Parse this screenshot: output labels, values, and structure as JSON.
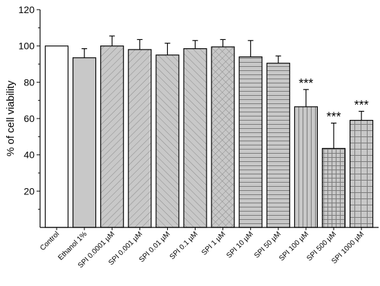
{
  "chart_data": {
    "type": "bar",
    "title": "",
    "xlabel": "",
    "ylabel": "% of cell viability",
    "ylim": [
      0,
      120
    ],
    "yticks": [
      20,
      40,
      60,
      80,
      100,
      120
    ],
    "grid": false,
    "legend": "none",
    "categories": [
      "Control",
      "Ethanol 1%",
      "SPI 0.0001 µM",
      "SPI 0.001 µM",
      "SPI 0.01 µM",
      "SPI 0.1 µM",
      "SPI 1 µM",
      "SPI 10 µM",
      "SPI 50 µM",
      "SPI 100 µM",
      "SPI 500 µM",
      "SPI 1000 µM"
    ],
    "values": [
      100,
      93.5,
      100,
      98,
      95,
      98.5,
      99.5,
      94,
      90.5,
      66.5,
      43.5,
      59
    ],
    "errors": [
      0,
      5,
      5.5,
      5.5,
      6.5,
      4.5,
      4,
      9,
      4,
      9.5,
      14,
      5
    ],
    "significance": [
      "",
      "",
      "",
      "",
      "",
      "",
      "",
      "",
      "",
      "***",
      "***",
      "***"
    ],
    "patterns": [
      "none",
      "gray",
      "diag-right",
      "diag-right",
      "diag-left",
      "diag-left",
      "crosshatch",
      "horizontal",
      "horizontal",
      "vertical",
      "grid",
      "grid-sparse"
    ]
  }
}
